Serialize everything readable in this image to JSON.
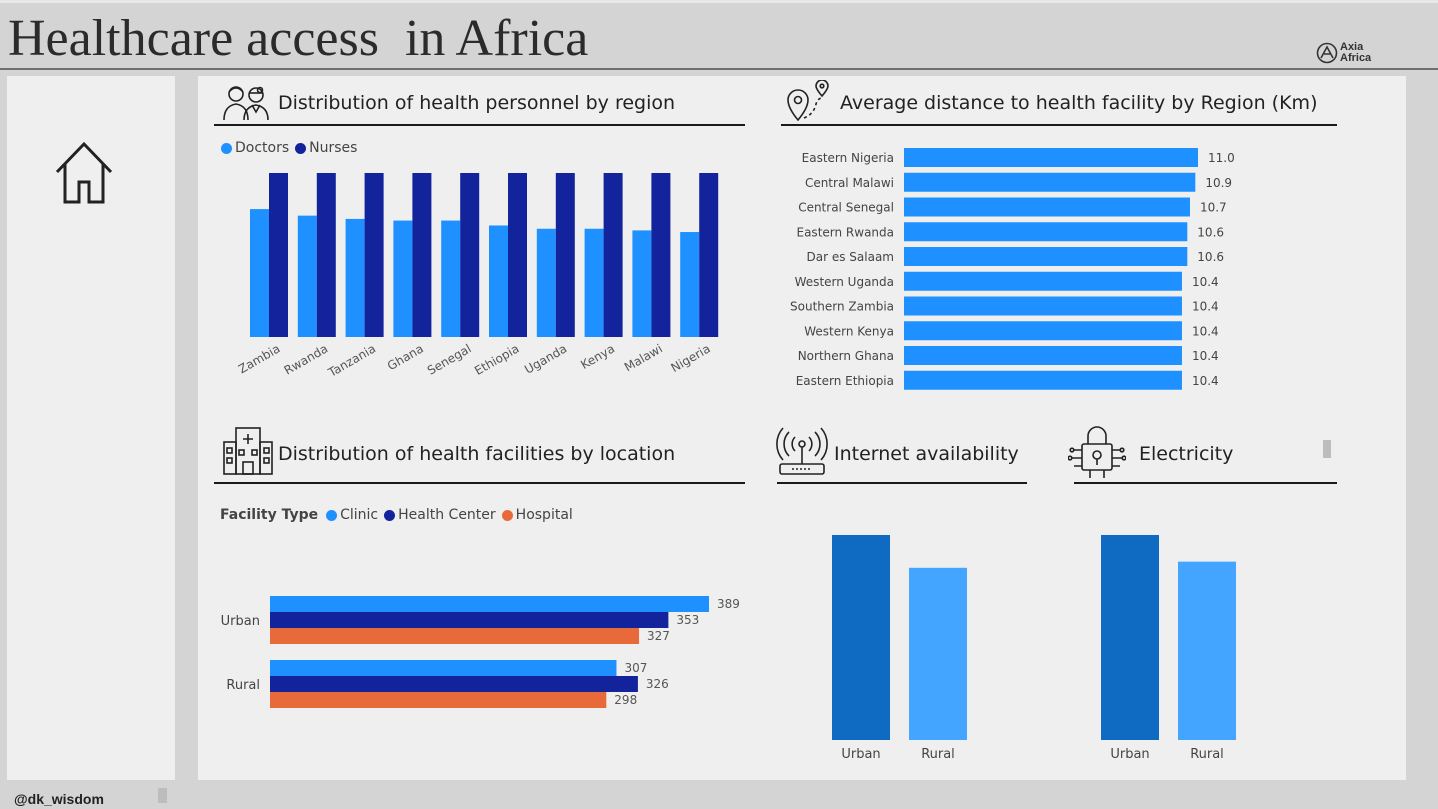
{
  "header": {
    "title": "Healthcare access  in Africa",
    "logo_line1": "Axia",
    "logo_line2": "Africa"
  },
  "footer": {
    "user": "@dk_wisdom"
  },
  "colors": {
    "doctors": "#1e90ff",
    "nurses": "#13239b",
    "clinic": "#1e90ff",
    "health_center": "#13239b",
    "hospital": "#e8693a",
    "urban": "#0f6ac1",
    "rural": "#43a5ff"
  },
  "sections": {
    "personnel": "Distribution of health personnel by region",
    "distance": "Average distance to health facility by Region (Km)",
    "facilities": "Distribution of health facilities by location",
    "internet": "Internet availability",
    "electricity": "Electricity"
  },
  "chart_data": [
    {
      "id": "personnel",
      "type": "bar",
      "categories": [
        "Zambia",
        "Rwanda",
        "Tanzania",
        "Ghana",
        "Senegal",
        "Ethiopia",
        "Uganda",
        "Kenya",
        "Malawi",
        "Nigeria"
      ],
      "series": [
        {
          "name": "Doctors",
          "values": [
            0.78,
            0.74,
            0.72,
            0.71,
            0.71,
            0.68,
            0.66,
            0.66,
            0.65,
            0.64
          ]
        },
        {
          "name": "Nurses",
          "values": [
            1,
            1,
            1,
            1,
            1,
            1,
            1,
            1,
            1,
            1
          ]
        }
      ],
      "legend": "top-left"
    },
    {
      "id": "distance",
      "type": "bar",
      "orientation": "horizontal",
      "categories": [
        "Eastern Nigeria",
        "Central Malawi",
        "Central Senegal",
        "Eastern Rwanda",
        "Dar es Salaam",
        "Western Uganda",
        "Southern Zambia",
        "Western Kenya",
        "Northern Ghana",
        "Eastern Ethiopia"
      ],
      "values": [
        11.0,
        10.9,
        10.7,
        10.6,
        10.6,
        10.4,
        10.4,
        10.4,
        10.4,
        10.4
      ],
      "labels": [
        "11.0",
        "10.9",
        "10.7",
        "10.6",
        "10.6",
        "10.4",
        "10.4",
        "10.4",
        "10.4",
        "10.4"
      ]
    },
    {
      "id": "facilities",
      "type": "bar",
      "orientation": "horizontal",
      "legend_title": "Facility Type",
      "categories": [
        "Urban",
        "Rural"
      ],
      "series": [
        {
          "name": "Clinic",
          "values": [
            389,
            307
          ]
        },
        {
          "name": "Health Center",
          "values": [
            353,
            326
          ]
        },
        {
          "name": "Hospital",
          "values": [
            327,
            298
          ]
        }
      ]
    },
    {
      "id": "internet",
      "type": "bar",
      "categories": [
        "Urban",
        "Rural"
      ],
      "values": [
        1.0,
        0.84
      ]
    },
    {
      "id": "electricity",
      "type": "bar",
      "categories": [
        "Urban",
        "Rural"
      ],
      "values": [
        1.0,
        0.87
      ]
    }
  ]
}
